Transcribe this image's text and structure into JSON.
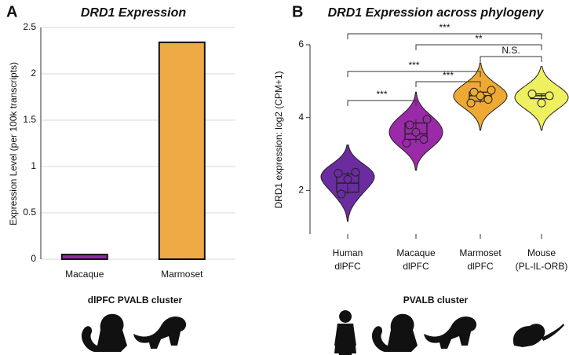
{
  "chart_data": [
    {
      "type": "bar",
      "panel": "A",
      "title": "DRD1 Expression",
      "ylabel": "Expression Level (per 100k transcripts)",
      "xlabel": "dlPFC PVALB cluster",
      "categories": [
        "Macaque",
        "Marmoset"
      ],
      "values": [
        0.05,
        2.34
      ],
      "colors": [
        "#8e2aa3",
        "#eeab45"
      ],
      "ylim": [
        0,
        2.5
      ],
      "yticks": [
        0,
        0.5,
        1,
        1.5,
        2,
        2.5
      ],
      "grid": true
    },
    {
      "type": "violin",
      "panel": "B",
      "title": "DRD1 Expression across phylogeny",
      "ylabel": "DRD1 expression: log2 (CPM+1)",
      "xlabel": "PVALB cluster",
      "categories": [
        [
          "Human",
          "dlPFC"
        ],
        [
          "Macaque",
          "dlPFC"
        ],
        [
          "Marmoset",
          "dlPFC"
        ],
        [
          "Mouse",
          "(PL-IL-ORB)"
        ]
      ],
      "colors": [
        "#6a2ca0",
        "#9a2aa8",
        "#eea935",
        "#eef060"
      ],
      "points": [
        [
          2.47,
          2.5,
          2.3,
          1.9
        ],
        [
          3.3,
          3.4,
          3.6,
          3.8,
          3.95
        ],
        [
          4.4,
          4.5,
          4.6,
          4.7,
          4.75
        ],
        [
          4.65,
          4.6,
          4.4
        ]
      ],
      "box": [
        [
          1.95,
          2.2,
          2.45
        ],
        [
          3.4,
          3.55,
          3.85
        ],
        [
          4.45,
          4.6,
          4.7
        ],
        [
          4.52,
          4.6,
          4.65
        ]
      ],
      "ylim": [
        0.8,
        6
      ],
      "yticks": [
        2,
        4,
        6
      ],
      "comparisons": [
        {
          "pair": [
            0,
            3
          ],
          "label": "***"
        },
        {
          "pair": [
            1,
            3
          ],
          "label": "**"
        },
        {
          "pair": [
            2,
            3
          ],
          "label": "N.S."
        },
        {
          "pair": [
            0,
            2
          ],
          "label": "***"
        },
        {
          "pair": [
            1,
            2
          ],
          "label": "***"
        },
        {
          "pair": [
            0,
            1
          ],
          "label": "***"
        }
      ]
    }
  ]
}
